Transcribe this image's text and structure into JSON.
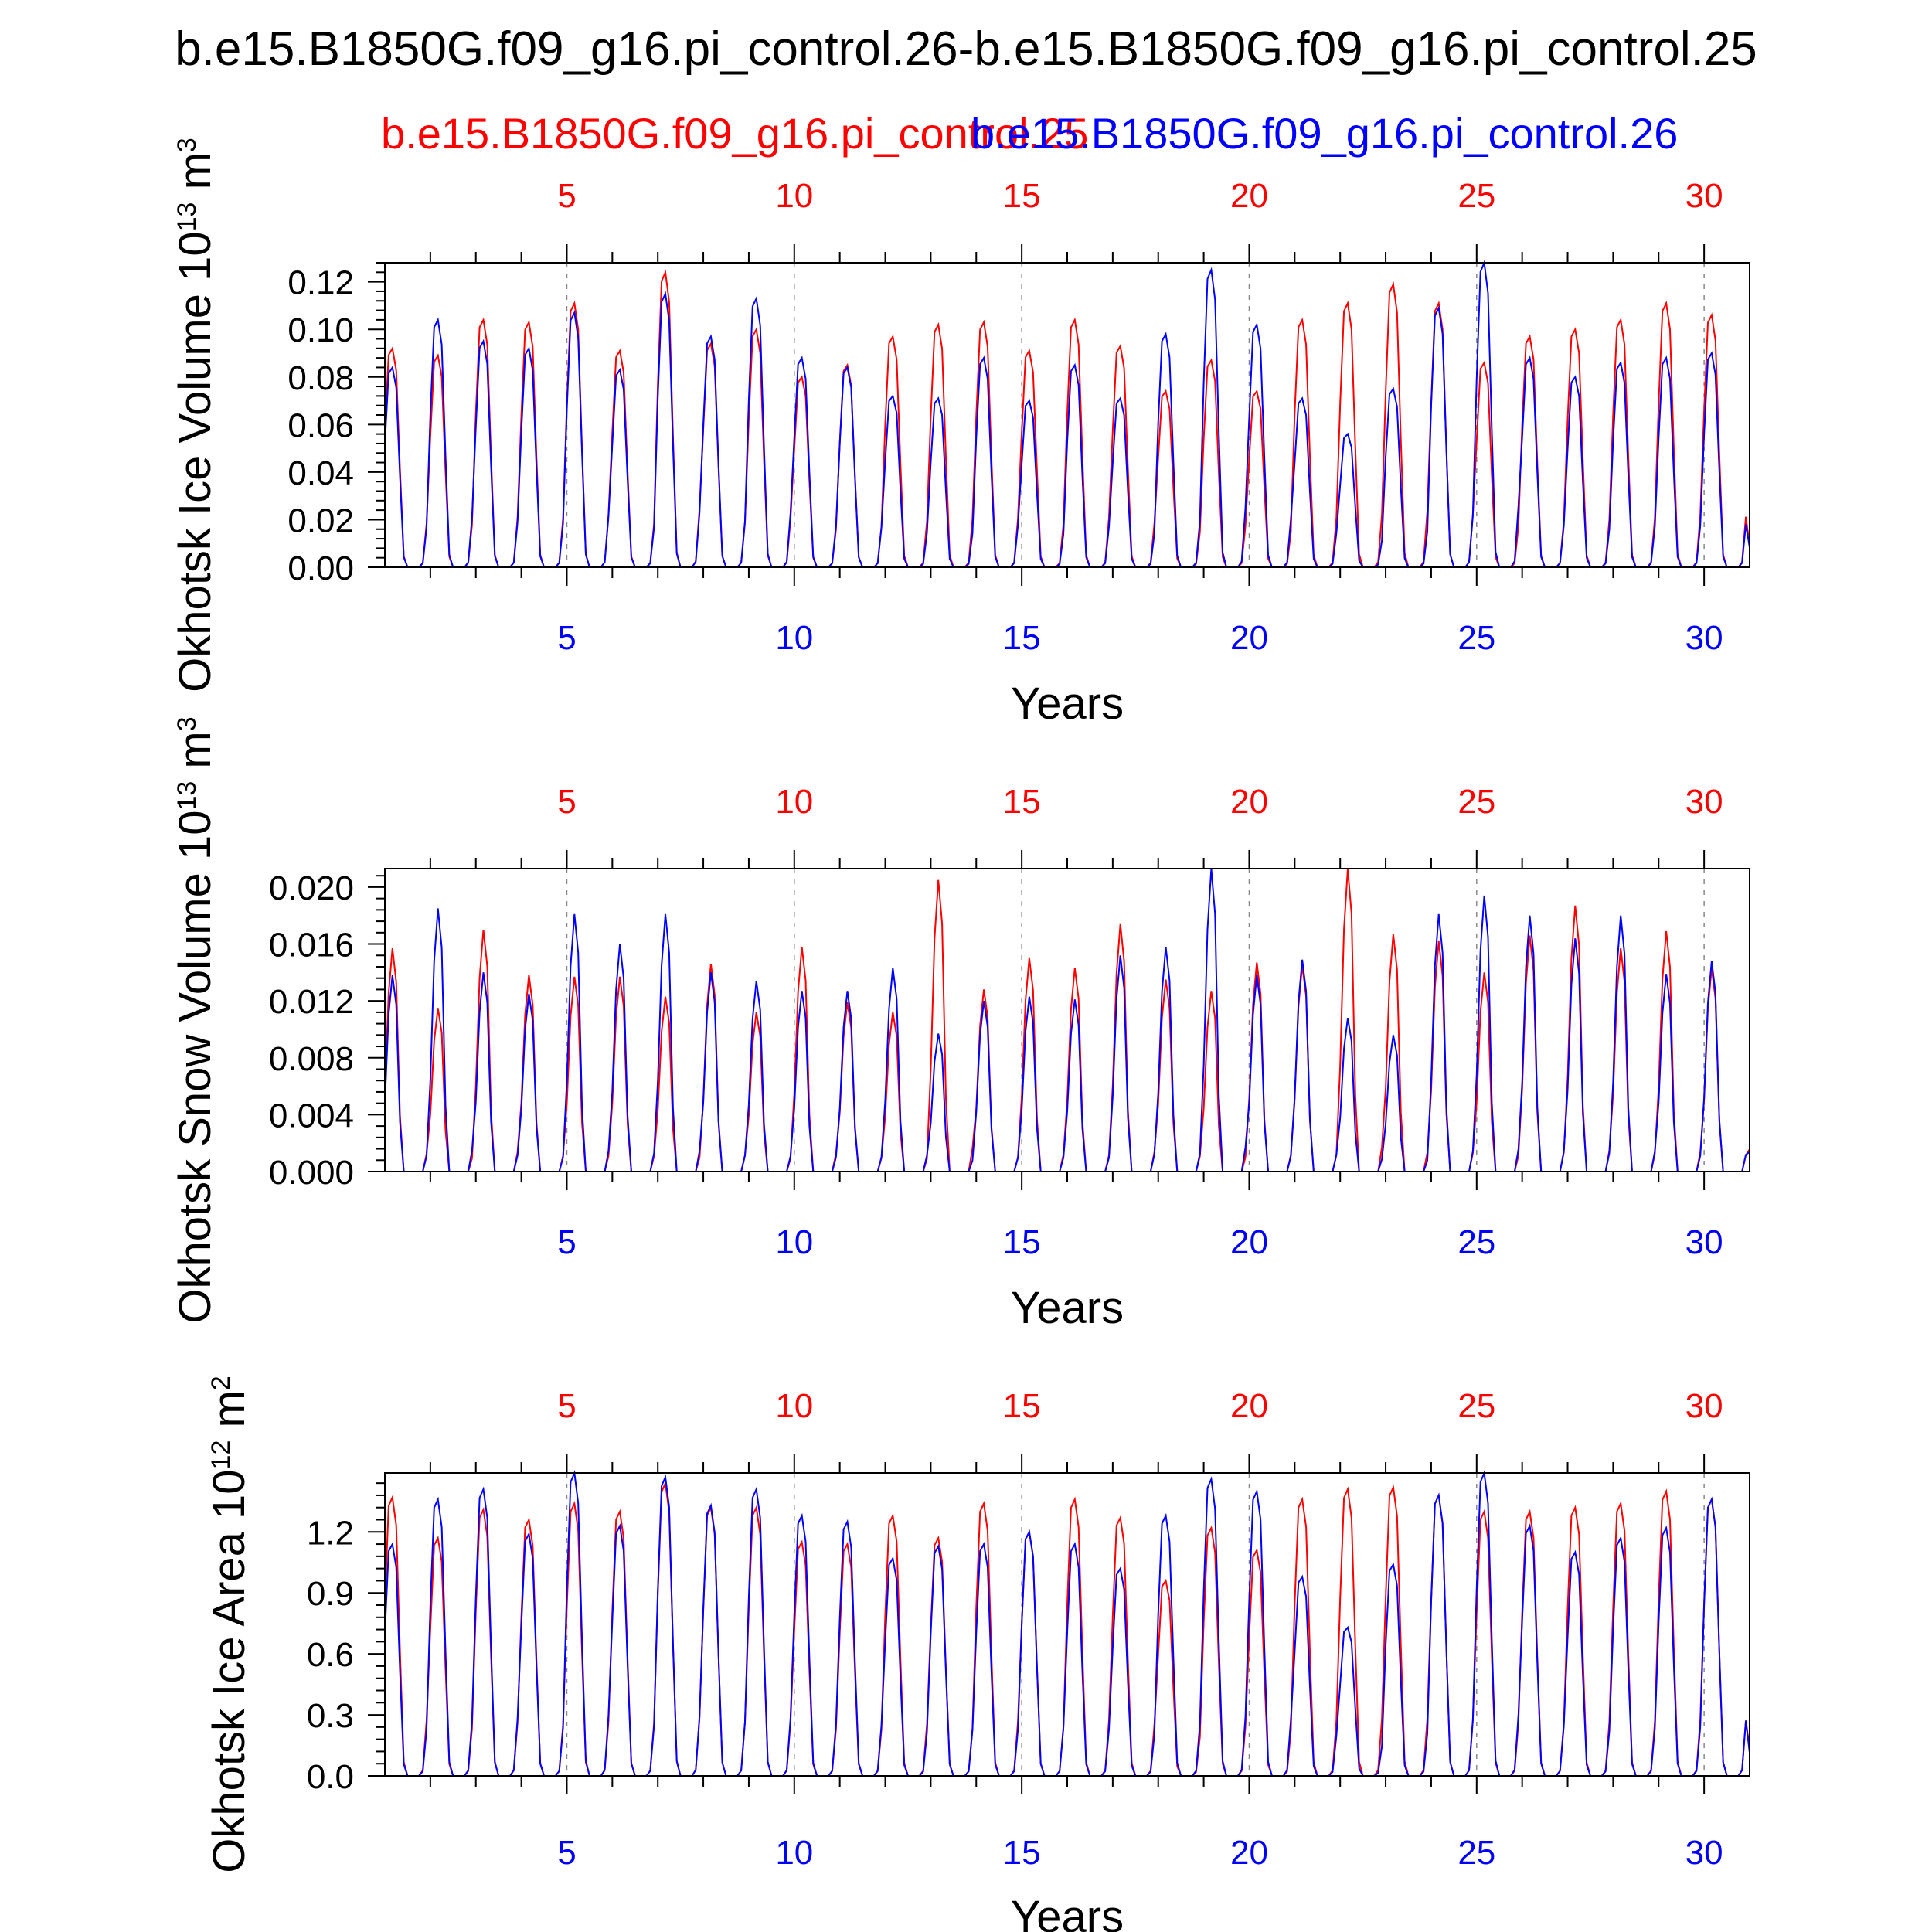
{
  "figure": {
    "title": "b.e15.B1850G.f09_g16.pi_control.26-b.e15.B1850G.f09_g16.pi_control.25",
    "legend": [
      {
        "name": "b.e15.B1850G.f09_g16.pi_control.25",
        "color": "#ff0000"
      },
      {
        "name": "b.e15.B1850G.f09_g16.pi_control.26",
        "color": "#0000ff"
      }
    ]
  },
  "chart_data": [
    {
      "type": "line",
      "ylabel": "Okhotsk Ice Volume 10",
      "ylabel_exp": "13",
      "ylabel_unit": "m",
      "ylabel_unit_exp": "3",
      "xlabel": "Years",
      "xlim": [
        1,
        31
      ],
      "ylim": [
        0,
        0.128
      ],
      "yticks": [
        0,
        0.02,
        0.04,
        0.06,
        0.08,
        0.1,
        0.12
      ],
      "ytick_labels": [
        "0.00",
        "0.02",
        "0.04",
        "0.06",
        "0.08",
        "0.10",
        "0.12"
      ],
      "xticks": [
        5,
        10,
        15,
        20,
        25,
        30
      ],
      "xtick_labels": [
        "5",
        "10",
        "15",
        "20",
        "25",
        "30"
      ],
      "series": [
        {
          "name": "b.e15.B1850G.f09_g16.pi_control.25",
          "color": "#ff0000",
          "annual_peaks": [
            0.092,
            0.089,
            0.104,
            0.103,
            0.111,
            0.091,
            0.124,
            0.094,
            0.1,
            0.08,
            0.085,
            0.097,
            0.102,
            0.103,
            0.091,
            0.104,
            0.093,
            0.074,
            0.087,
            0.074,
            0.104,
            0.111,
            0.119,
            0.111,
            0.086,
            0.097,
            0.1,
            0.104,
            0.111,
            0.106
          ]
        },
        {
          "name": "b.e15.B1850G.f09_g16.pi_control.26",
          "color": "#0000ff",
          "annual_peaks": [
            0.084,
            0.104,
            0.095,
            0.092,
            0.107,
            0.083,
            0.115,
            0.097,
            0.113,
            0.088,
            0.084,
            0.072,
            0.071,
            0.088,
            0.07,
            0.085,
            0.071,
            0.098,
            0.125,
            0.102,
            0.071,
            0.056,
            0.075,
            0.109,
            0.128,
            0.088,
            0.08,
            0.086,
            0.088,
            0.09
          ]
        }
      ]
    },
    {
      "type": "line",
      "ylabel": "Okhotsk Snow Volume 10",
      "ylabel_exp": "13",
      "ylabel_unit": "m",
      "ylabel_unit_exp": "3",
      "xlabel": "Years",
      "xlim": [
        1,
        31
      ],
      "ylim": [
        0,
        0.0213
      ],
      "yticks": [
        0,
        0.004,
        0.008,
        0.012,
        0.016,
        0.02
      ],
      "ytick_labels": [
        "0.000",
        "0.004",
        "0.008",
        "0.012",
        "0.016",
        "0.020"
      ],
      "xticks": [
        5,
        10,
        15,
        20,
        25,
        30
      ],
      "xtick_labels": [
        "5",
        "10",
        "15",
        "20",
        "25",
        "30"
      ],
      "series": [
        {
          "name": "b.e15.B1850G.f09_g16.pi_control.25",
          "color": "#ff0000",
          "annual_peaks": [
            0.0157,
            0.0115,
            0.017,
            0.0138,
            0.0137,
            0.0137,
            0.0123,
            0.0146,
            0.0112,
            0.0158,
            0.0119,
            0.0112,
            0.0205,
            0.0128,
            0.015,
            0.0143,
            0.0174,
            0.0135,
            0.0127,
            0.0147,
            0.0145,
            0.0213,
            0.0167,
            0.0162,
            0.014,
            0.0166,
            0.0187,
            0.0157,
            0.0169,
            0.0143
          ]
        },
        {
          "name": "b.e15.B1850G.f09_g16.pi_control.26",
          "color": "#0000ff",
          "annual_peaks": [
            0.0138,
            0.0185,
            0.014,
            0.0125,
            0.0181,
            0.016,
            0.0181,
            0.014,
            0.0134,
            0.0127,
            0.0127,
            0.0143,
            0.0097,
            0.012,
            0.0123,
            0.0121,
            0.0152,
            0.0158,
            0.0213,
            0.0138,
            0.0149,
            0.0108,
            0.0096,
            0.0181,
            0.0194,
            0.018,
            0.0164,
            0.018,
            0.0139,
            0.0148
          ]
        }
      ]
    },
    {
      "type": "line",
      "ylabel": "Okhotsk Ice Area 10",
      "ylabel_exp": "12",
      "ylabel_unit": "m",
      "ylabel_unit_exp": "2",
      "xlabel": "Years",
      "xlim": [
        1,
        31
      ],
      "ylim": [
        0,
        1.49
      ],
      "yticks": [
        0,
        0.3,
        0.6,
        0.9,
        1.2
      ],
      "ytick_labels": [
        "0.0",
        "0.3",
        "0.6",
        "0.9",
        "1.2"
      ],
      "xticks": [
        5,
        10,
        15,
        20,
        25,
        30
      ],
      "xtick_labels": [
        "5",
        "10",
        "15",
        "20",
        "25",
        "30"
      ],
      "series": [
        {
          "name": "b.e15.B1850G.f09_g16.pi_control.25",
          "color": "#ff0000",
          "annual_peaks": [
            1.37,
            1.17,
            1.31,
            1.26,
            1.34,
            1.3,
            1.44,
            1.32,
            1.32,
            1.15,
            1.14,
            1.28,
            1.17,
            1.34,
            1.2,
            1.36,
            1.27,
            0.96,
            1.22,
            1.11,
            1.36,
            1.41,
            1.42,
            1.38,
            1.3,
            1.3,
            1.32,
            1.34,
            1.4,
            1.36
          ]
        },
        {
          "name": "b.e15.B1850G.f09_g16.pi_control.26",
          "color": "#0000ff",
          "annual_peaks": [
            1.14,
            1.36,
            1.41,
            1.19,
            1.49,
            1.23,
            1.47,
            1.33,
            1.41,
            1.28,
            1.25,
            1.07,
            1.13,
            1.14,
            1.2,
            1.14,
            1.02,
            1.28,
            1.46,
            1.4,
            0.98,
            0.73,
            1.04,
            1.38,
            1.49,
            1.23,
            1.1,
            1.17,
            1.22,
            1.36
          ]
        }
      ]
    }
  ]
}
